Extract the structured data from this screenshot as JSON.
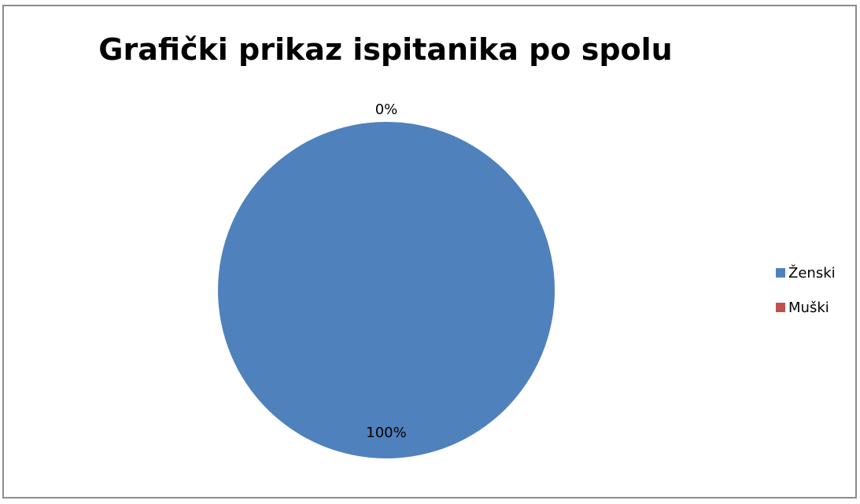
{
  "chart_data": {
    "type": "pie",
    "title": "Grafički prikaz ispitanika po spolu",
    "categories": [
      "Ženski",
      "Muški"
    ],
    "values": [
      100,
      0
    ],
    "data_labels": [
      "100%",
      "0%"
    ],
    "colors": [
      "#4f81bd",
      "#c0504d"
    ],
    "legend": {
      "position": "right",
      "entries": [
        "Ženski",
        "Muški"
      ]
    },
    "grid": false
  }
}
